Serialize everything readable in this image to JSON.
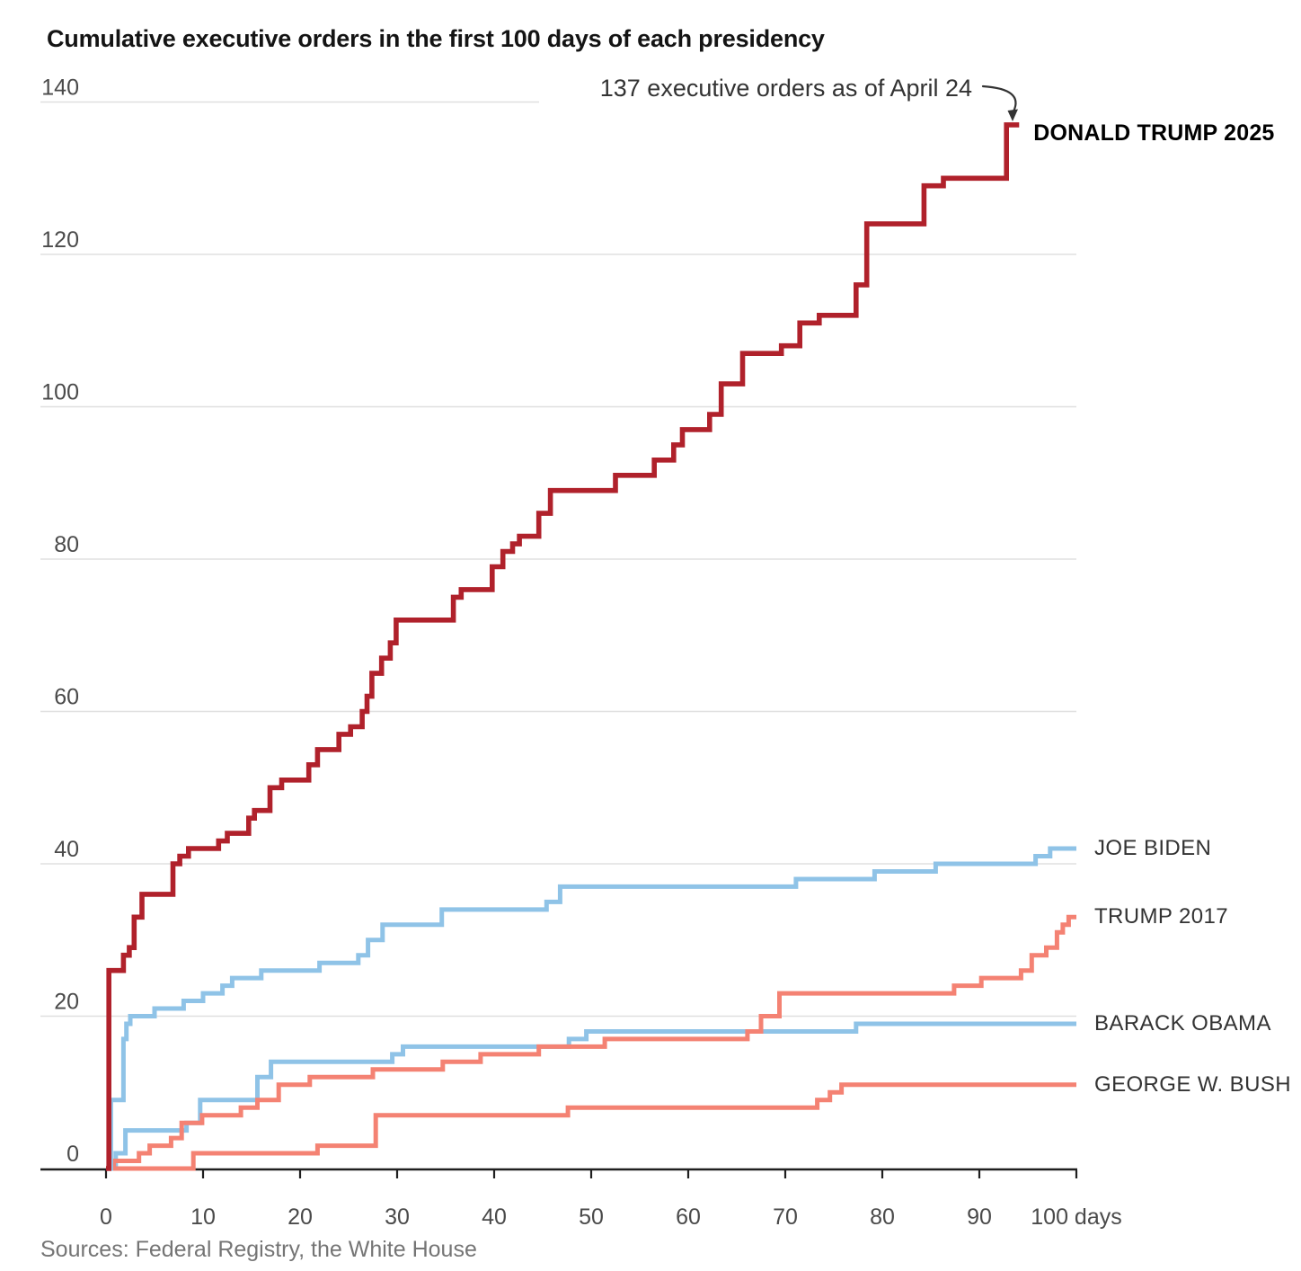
{
  "title": "Cumulative executive orders in the first 100 days of each presidency",
  "annotation": {
    "text": "137 executive orders as of April 24"
  },
  "source": "Sources: Federal Registry, the White House",
  "colors": {
    "trump_red": "#b0212b",
    "blue": "#8fc3e7",
    "salmon": "#f48273",
    "grid": "#e0e0e0",
    "axis": "#1f1f1f",
    "tick_label": "#4a4a4a",
    "annotation_arrow": "#333333"
  },
  "chart_data": {
    "type": "line",
    "step": true,
    "title": "Cumulative executive orders in the first 100 days of each presidency",
    "xlabel": "days",
    "ylabel": "executive orders",
    "xlim": [
      0,
      100
    ],
    "ylim": [
      0,
      140
    ],
    "grid": "horizontal",
    "legend_position": "right-of-line-ends",
    "x_ticks": [
      0,
      10,
      20,
      30,
      40,
      50,
      60,
      70,
      80,
      90,
      100
    ],
    "x_tick_labels": [
      "0",
      "10",
      "20",
      "30",
      "40",
      "50",
      "60",
      "70",
      "80",
      "90",
      "100 days"
    ],
    "y_ticks": [
      0,
      20,
      40,
      60,
      80,
      100,
      120,
      140
    ],
    "series": [
      {
        "key": "obama",
        "name": "BARACK OBAMA",
        "color_key": "blue",
        "end_day": 100,
        "end_value": 19,
        "points": [
          [
            0,
            0
          ],
          [
            1,
            2
          ],
          [
            2,
            5
          ],
          [
            8.3,
            6
          ],
          [
            9.7,
            9
          ],
          [
            15.6,
            12
          ],
          [
            17,
            14
          ],
          [
            29.5,
            15
          ],
          [
            30.6,
            16
          ],
          [
            47.7,
            17
          ],
          [
            49.5,
            18
          ],
          [
            77.3,
            19
          ]
        ]
      },
      {
        "key": "bush",
        "name": "GEORGE W. BUSH",
        "color_key": "salmon",
        "end_day": 100,
        "end_value": 11,
        "points": [
          [
            0,
            0
          ],
          [
            9,
            2
          ],
          [
            21.8,
            3
          ],
          [
            27.8,
            7
          ],
          [
            47.6,
            8
          ],
          [
            73.3,
            9
          ],
          [
            74.6,
            10
          ],
          [
            75.8,
            11
          ]
        ]
      },
      {
        "key": "trump2017",
        "name": "TRUMP 2017",
        "color_key": "salmon",
        "end_day": 100,
        "end_value": 33,
        "points": [
          [
            0,
            0
          ],
          [
            0.8,
            1
          ],
          [
            3.4,
            2
          ],
          [
            4.5,
            3
          ],
          [
            6.7,
            4
          ],
          [
            7.8,
            6
          ],
          [
            9.9,
            7
          ],
          [
            13.9,
            8
          ],
          [
            15.6,
            9
          ],
          [
            17.8,
            11
          ],
          [
            21,
            12
          ],
          [
            27.5,
            13
          ],
          [
            34.7,
            14
          ],
          [
            38.6,
            15
          ],
          [
            44.6,
            16
          ],
          [
            51.4,
            17
          ],
          [
            66.1,
            18
          ],
          [
            67.5,
            20
          ],
          [
            69.4,
            23
          ],
          [
            87.4,
            24
          ],
          [
            90.2,
            25
          ],
          [
            94.3,
            26
          ],
          [
            95.4,
            28
          ],
          [
            96.9,
            29
          ],
          [
            98,
            31
          ],
          [
            98.6,
            32
          ],
          [
            99.2,
            33
          ]
        ]
      },
      {
        "key": "biden",
        "name": "JOE BIDEN",
        "color_key": "blue",
        "end_day": 100,
        "end_value": 42,
        "points": [
          [
            0,
            0
          ],
          [
            0.5,
            9
          ],
          [
            1.8,
            17
          ],
          [
            2.1,
            19
          ],
          [
            2.5,
            20
          ],
          [
            5,
            21
          ],
          [
            8,
            22
          ],
          [
            10,
            23
          ],
          [
            12,
            24
          ],
          [
            13,
            25
          ],
          [
            16,
            26
          ],
          [
            22,
            27
          ],
          [
            26,
            28
          ],
          [
            27,
            30
          ],
          [
            28.5,
            32
          ],
          [
            34.6,
            34
          ],
          [
            45.4,
            35
          ],
          [
            46.8,
            37
          ],
          [
            71.1,
            38
          ],
          [
            79.2,
            39
          ],
          [
            85.5,
            40
          ],
          [
            95.8,
            41
          ],
          [
            97.3,
            42
          ]
        ]
      },
      {
        "key": "trump2025",
        "name": "DONALD TRUMP 2025",
        "color_key": "trump_red",
        "bold": true,
        "label_at_line_end": true,
        "end_day": 94.1,
        "end_value": 137,
        "points": [
          [
            0,
            0
          ],
          [
            0.3,
            26
          ],
          [
            1.8,
            28
          ],
          [
            2.4,
            29
          ],
          [
            2.9,
            33
          ],
          [
            3.7,
            36
          ],
          [
            6.9,
            40
          ],
          [
            7.6,
            41
          ],
          [
            8.5,
            42
          ],
          [
            11.6,
            43
          ],
          [
            12.5,
            44
          ],
          [
            14.7,
            46
          ],
          [
            15.3,
            47
          ],
          [
            16.9,
            50
          ],
          [
            18.1,
            51
          ],
          [
            20.9,
            53
          ],
          [
            21.8,
            55
          ],
          [
            24,
            57
          ],
          [
            25.2,
            58
          ],
          [
            26.4,
            60
          ],
          [
            26.9,
            62
          ],
          [
            27.4,
            65
          ],
          [
            28.4,
            67
          ],
          [
            29.3,
            69
          ],
          [
            29.9,
            72
          ],
          [
            35.8,
            75
          ],
          [
            36.6,
            76
          ],
          [
            39.8,
            79
          ],
          [
            40.9,
            81
          ],
          [
            41.9,
            82
          ],
          [
            42.6,
            83
          ],
          [
            44.6,
            86
          ],
          [
            45.8,
            89
          ],
          [
            52.5,
            91
          ],
          [
            56.5,
            93
          ],
          [
            58.5,
            95
          ],
          [
            59.4,
            97
          ],
          [
            62.2,
            99
          ],
          [
            63.4,
            103
          ],
          [
            65.6,
            107
          ],
          [
            69.6,
            108
          ],
          [
            71.5,
            111
          ],
          [
            73.5,
            112
          ],
          [
            77.3,
            116
          ],
          [
            78.4,
            124
          ],
          [
            84.3,
            129
          ],
          [
            86.3,
            130
          ],
          [
            92.8,
            137
          ]
        ]
      }
    ]
  }
}
